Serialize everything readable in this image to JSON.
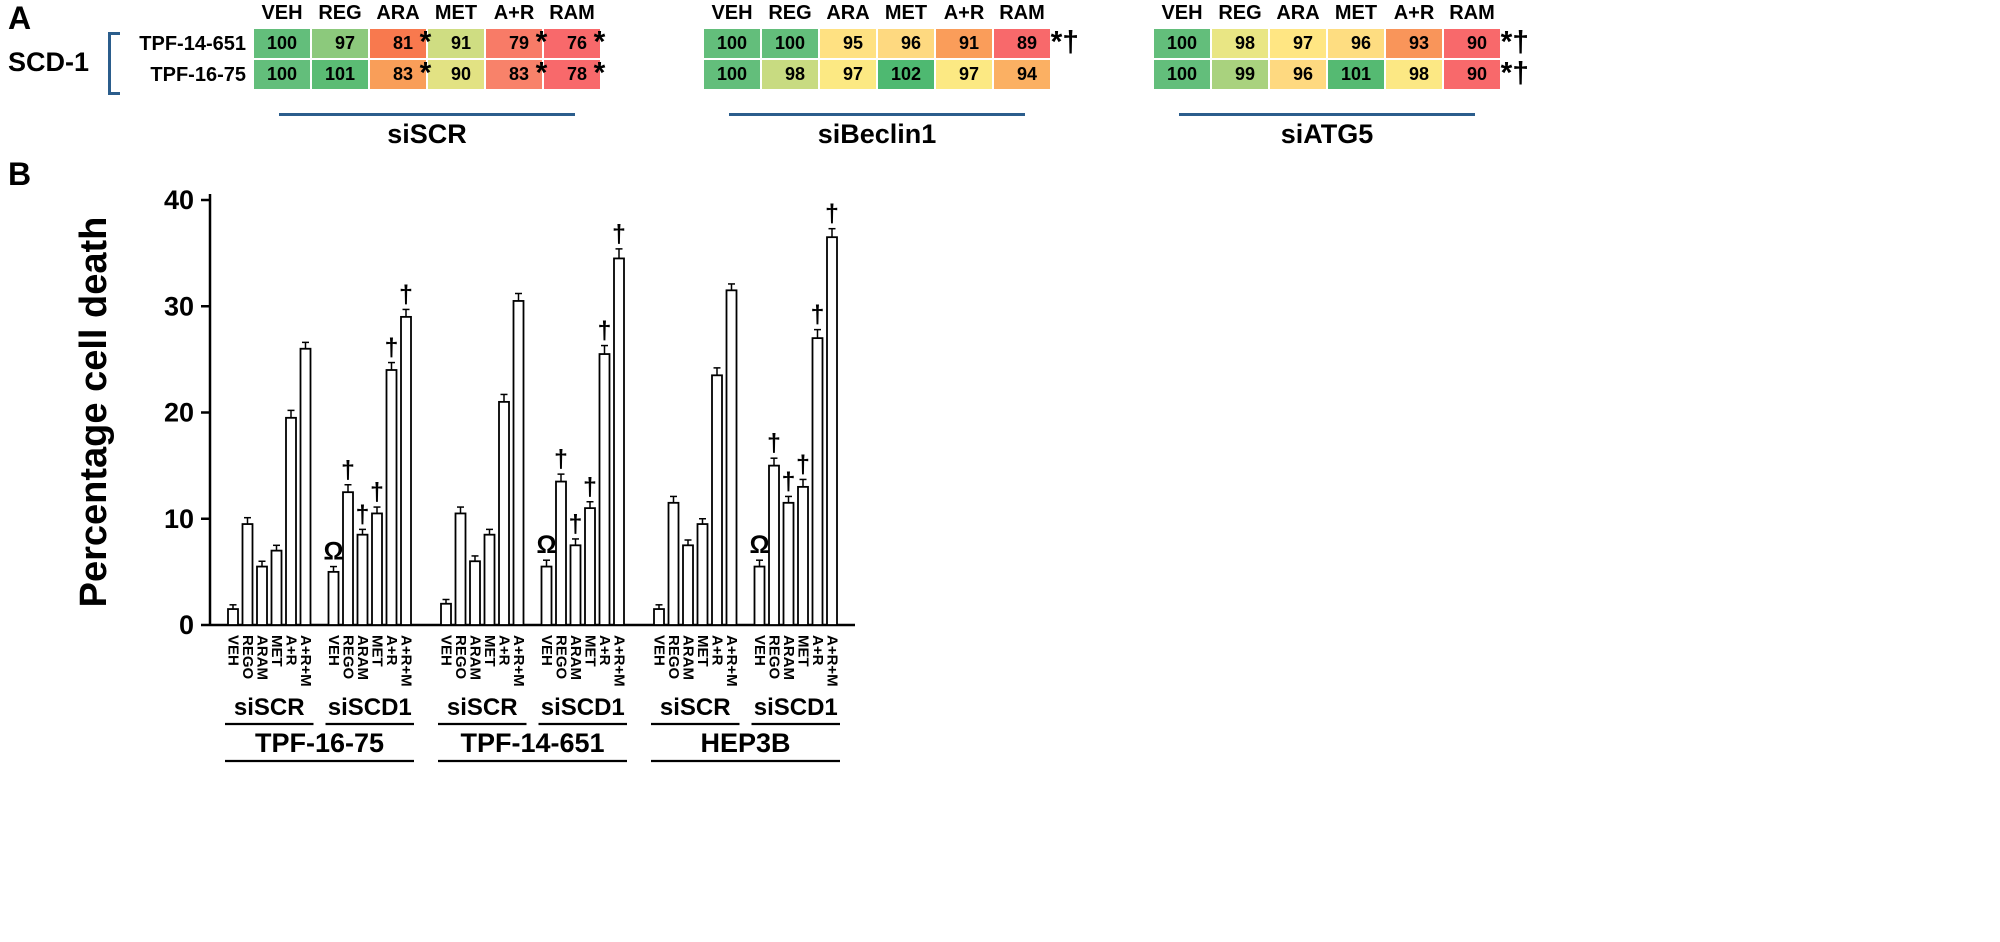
{
  "figure": {
    "panelA_label": "A",
    "panelB_label": "B"
  },
  "colors": {
    "accent": "#2b5d8c",
    "cell_green": "#63be7b",
    "cell_red": "#f8696b",
    "bar_fill": "#ffffff",
    "line": "#000000"
  },
  "chart_data": [
    {
      "type": "heatmap",
      "row_group_label": "SCD-1",
      "rows": [
        "TPF-14-651",
        "TPF-16-75"
      ],
      "columns": [
        "VEH",
        "REG",
        "ARA",
        "MET",
        "A+R",
        "RAM"
      ],
      "blocks": [
        {
          "label": "siSCR",
          "cells": [
            [
              {
                "v": "100",
                "c": "#63be7b",
                "m": ""
              },
              {
                "v": "97",
                "c": "#8cc97c",
                "m": ""
              },
              {
                "v": "81",
                "c": "#f8794e",
                "m": "*"
              },
              {
                "v": "91",
                "c": "#cfdd82",
                "m": ""
              },
              {
                "v": "79",
                "c": "#f87b67",
                "m": "*"
              },
              {
                "v": "76",
                "c": "#f8696b",
                "m": "*"
              }
            ],
            [
              {
                "v": "100",
                "c": "#63be7b",
                "m": ""
              },
              {
                "v": "101",
                "c": "#5bbc74",
                "m": ""
              },
              {
                "v": "83",
                "c": "#f99e59",
                "m": "*"
              },
              {
                "v": "90",
                "c": "#e2e283",
                "m": ""
              },
              {
                "v": "83",
                "c": "#f8826a",
                "m": "*"
              },
              {
                "v": "78",
                "c": "#f8696b",
                "m": "*"
              }
            ]
          ]
        },
        {
          "label": "siBeclin1",
          "cells": [
            [
              {
                "v": "100",
                "c": "#63be7b",
                "m": ""
              },
              {
                "v": "100",
                "c": "#63be7b",
                "m": ""
              },
              {
                "v": "95",
                "c": "#ffe182",
                "m": ""
              },
              {
                "v": "96",
                "c": "#fed980",
                "m": ""
              },
              {
                "v": "91",
                "c": "#fa9d5a",
                "m": ""
              },
              {
                "v": "89",
                "c": "#f8696b",
                "m": "*†"
              }
            ],
            [
              {
                "v": "100",
                "c": "#63be7b",
                "m": ""
              },
              {
                "v": "98",
                "c": "#c8db81",
                "m": ""
              },
              {
                "v": "97",
                "c": "#fce983",
                "m": ""
              },
              {
                "v": "102",
                "c": "#4eb971",
                "m": ""
              },
              {
                "v": "97",
                "c": "#fce983",
                "m": ""
              },
              {
                "v": "94",
                "c": "#fbb063",
                "m": ""
              }
            ]
          ]
        },
        {
          "label": "siATG5",
          "cells": [
            [
              {
                "v": "100",
                "c": "#63be7b",
                "m": ""
              },
              {
                "v": "98",
                "c": "#e9e684",
                "m": ""
              },
              {
                "v": "97",
                "c": "#ffe683",
                "m": ""
              },
              {
                "v": "96",
                "c": "#fedd81",
                "m": ""
              },
              {
                "v": "93",
                "c": "#f9955a",
                "m": ""
              },
              {
                "v": "90",
                "c": "#f8696b",
                "m": "*†"
              }
            ],
            [
              {
                "v": "100",
                "c": "#63be7b",
                "m": ""
              },
              {
                "v": "99",
                "c": "#a9d27e",
                "m": ""
              },
              {
                "v": "96",
                "c": "#fed980",
                "m": ""
              },
              {
                "v": "101",
                "c": "#55ba72",
                "m": ""
              },
              {
                "v": "98",
                "c": "#fce884",
                "m": ""
              },
              {
                "v": "90",
                "c": "#f8696b",
                "m": "*†"
              }
            ]
          ]
        }
      ]
    },
    {
      "type": "bar",
      "ylabel": "Percentage cell death",
      "ylim": [
        0,
        40
      ],
      "yticks": [
        0,
        10,
        20,
        30,
        40
      ],
      "categories": [
        "VEH",
        "REGO",
        "ARAM",
        "MET",
        "A+R",
        "A+R+M"
      ],
      "cell_lines": [
        {
          "label": "TPF-16-75",
          "groups": [
            {
              "label": "siSCR",
              "values": [
                1.5,
                9.5,
                5.5,
                7,
                19.5,
                26
              ],
              "errors": [
                0.4,
                0.6,
                0.5,
                0.5,
                0.7,
                0.6
              ],
              "symbols": [
                "",
                "",
                "",
                "",
                "",
                ""
              ]
            },
            {
              "label": "siSCD1",
              "values": [
                5,
                12.5,
                8.5,
                10.5,
                24,
                29
              ],
              "errors": [
                0.5,
                0.7,
                0.5,
                0.6,
                0.7,
                0.7
              ],
              "symbols": [
                "Ω",
                "†",
                "†",
                "†",
                "†",
                "†"
              ]
            }
          ]
        },
        {
          "label": "TPF-14-651",
          "groups": [
            {
              "label": "siSCR",
              "values": [
                2,
                10.5,
                6,
                8.5,
                21,
                30.5
              ],
              "errors": [
                0.4,
                0.6,
                0.5,
                0.5,
                0.7,
                0.7
              ],
              "symbols": [
                "",
                "",
                "",
                "",
                "",
                ""
              ]
            },
            {
              "label": "siSCD1",
              "values": [
                5.5,
                13.5,
                7.5,
                11,
                25.5,
                34.5
              ],
              "errors": [
                0.6,
                0.7,
                0.6,
                0.6,
                0.8,
                0.9
              ],
              "symbols": [
                "Ω",
                "†",
                "†",
                "†",
                "†",
                "†"
              ]
            }
          ]
        },
        {
          "label": "HEP3B",
          "groups": [
            {
              "label": "siSCR",
              "values": [
                1.5,
                11.5,
                7.5,
                9.5,
                23.5,
                31.5
              ],
              "errors": [
                0.4,
                0.6,
                0.5,
                0.5,
                0.7,
                0.6
              ],
              "symbols": [
                "",
                "",
                "",
                "",
                "",
                ""
              ]
            },
            {
              "label": "siSCD1",
              "values": [
                5.5,
                15,
                11.5,
                13,
                27,
                36.5
              ],
              "errors": [
                0.6,
                0.7,
                0.6,
                0.7,
                0.8,
                0.8
              ],
              "symbols": [
                "Ω",
                "†",
                "†",
                "†",
                "†",
                "†"
              ]
            }
          ]
        }
      ]
    }
  ]
}
